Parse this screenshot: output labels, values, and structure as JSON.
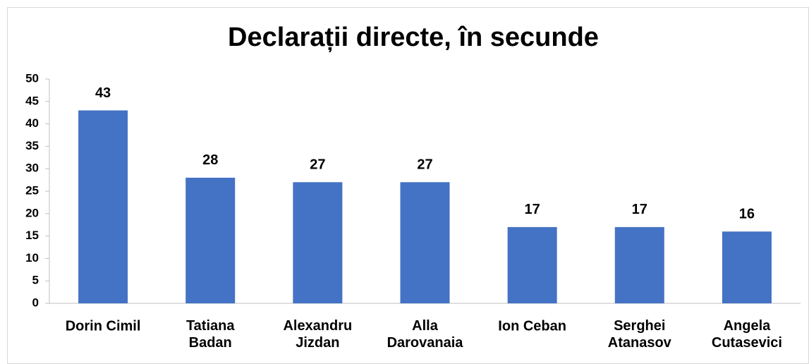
{
  "chart_data": {
    "type": "bar",
    "title": "Declarații directe, în secunde",
    "categories": [
      "Dorin Cimil",
      "Tatiana\nBadan",
      "Alexandru\nJizdan",
      "Alla\nDarovanaia",
      "Ion Ceban",
      "Serghei\nAtanasov",
      "Angela\nCutasevici"
    ],
    "values": [
      43,
      28,
      27,
      27,
      17,
      17,
      16
    ],
    "color": "#4472c4",
    "ylim": [
      0,
      50
    ],
    "yticks": [
      0,
      5,
      10,
      15,
      20,
      25,
      30,
      35,
      40,
      45,
      50
    ],
    "grid": false
  }
}
